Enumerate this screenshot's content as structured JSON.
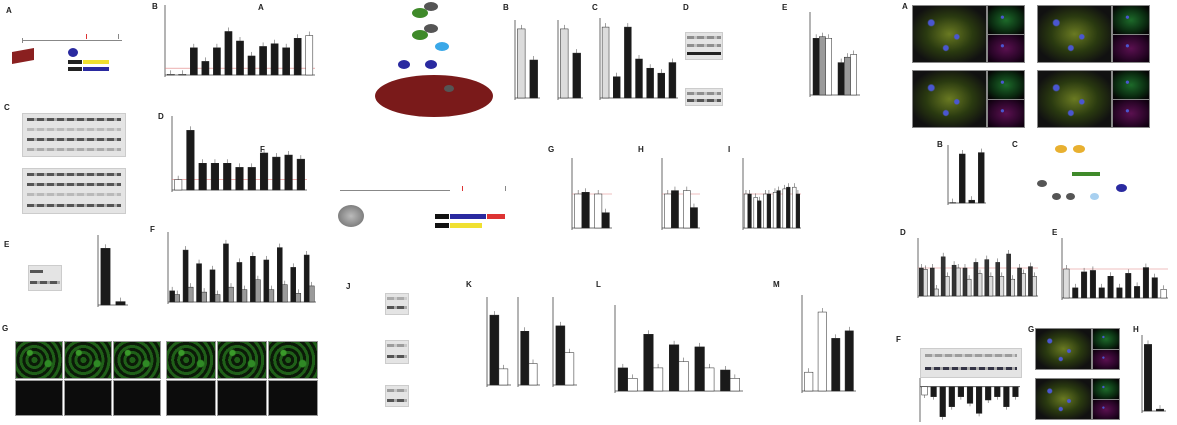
{
  "panel_letters": {
    "left": [
      "A",
      "B",
      "C",
      "D",
      "E",
      "F",
      "G"
    ],
    "middle": [
      "A",
      "B",
      "C",
      "D",
      "E",
      "F",
      "G",
      "H",
      "I",
      "J",
      "K",
      "L",
      "M"
    ],
    "right": [
      "A",
      "B",
      "C",
      "D",
      "E",
      "F",
      "G",
      "H"
    ]
  },
  "colors": {
    "black_bar": "#1a1a1a",
    "gray_bar": "#9a9a9a",
    "white_bar": "#ffffff",
    "reference_line": "#e08080",
    "fluorescence": "#2f8a25",
    "nucleus": "#4a56d0",
    "cell": "#7a1a1a",
    "schematic_green": "#3f8a2a",
    "schematic_blue": "#2a2aa0",
    "schematic_light_blue": "#3aa8e8",
    "schematic_orange": "#e8b030",
    "schematic_gray": "#555555"
  },
  "chart_data": [
    {
      "id": "L-B",
      "type": "bar",
      "ylim": [
        0,
        5
      ],
      "reference": 0.5,
      "series": [
        {
          "color": "mixed",
          "values": [
            0.05,
            0.05,
            2.0,
            1.0,
            2.0,
            3.2,
            2.5,
            1.4,
            2.1,
            2.3,
            2.0,
            2.7,
            2.9
          ],
          "fills": [
            "w",
            "w",
            "k",
            "k",
            "k",
            "k",
            "k",
            "k",
            "k",
            "k",
            "k",
            "k",
            "w"
          ]
        }
      ]
    },
    {
      "id": "L-D",
      "type": "bar",
      "ylim": [
        0,
        3.5
      ],
      "reference": 0.5,
      "series": [
        {
          "values": [
            0.5,
            2.9,
            1.3,
            1.3,
            1.3,
            1.1,
            1.1,
            1.8,
            1.6,
            1.7,
            1.5
          ],
          "fills": [
            "w",
            "k",
            "k",
            "k",
            "k",
            "k",
            "k",
            "k",
            "k",
            "k",
            "k"
          ]
        }
      ]
    },
    {
      "id": "L-E",
      "type": "bar",
      "ylim": [
        0,
        1.2
      ],
      "series": [
        {
          "values": [
            1.0,
            0.06
          ],
          "fills": [
            "k",
            "k"
          ]
        }
      ]
    },
    {
      "id": "L-F",
      "type": "grouped-bar",
      "ylim": [
        0,
        5.5
      ],
      "series": [
        {
          "fill": "k",
          "values": [
            0.9,
            4.2,
            3.1,
            2.6,
            4.7,
            3.2,
            3.7,
            3.4,
            4.4,
            2.8,
            3.8
          ]
        },
        {
          "fill": "g",
          "values": [
            0.6,
            1.2,
            0.8,
            0.6,
            1.2,
            1.0,
            1.8,
            1.0,
            1.4,
            0.7,
            1.3
          ]
        }
      ]
    },
    {
      "id": "M-B1",
      "type": "bar",
      "ylim": [
        0,
        1.1
      ],
      "series": [
        {
          "values": [
            1.0,
            0.55
          ],
          "fills": [
            "l",
            "k"
          ]
        }
      ]
    },
    {
      "id": "M-B2",
      "type": "bar",
      "ylim": [
        0,
        1.1
      ],
      "series": [
        {
          "values": [
            1.0,
            0.65
          ],
          "fills": [
            "l",
            "k"
          ]
        }
      ]
    },
    {
      "id": "M-C",
      "type": "bar",
      "ylim": [
        0,
        1.1
      ],
      "series": [
        {
          "values": [
            1.0,
            0.3,
            1.0,
            0.55,
            0.42,
            0.35,
            0.5
          ],
          "fills": [
            "l",
            "k",
            "k",
            "k",
            "k",
            "k",
            "k"
          ]
        }
      ]
    },
    {
      "id": "M-E",
      "type": "grouped-bar",
      "ylim": [
        0,
        1.5
      ],
      "series": [
        {
          "fill": "k",
          "values": [
            1.05,
            0.6
          ]
        },
        {
          "fill": "g",
          "values": [
            1.08,
            0.7
          ]
        },
        {
          "fill": "w",
          "values": [
            1.05,
            0.75
          ]
        }
      ]
    },
    {
      "id": "M-G",
      "type": "grouped-bar",
      "ylim": [
        0,
        2
      ],
      "reference": 1,
      "series": [
        {
          "fill": "w",
          "values": [
            1.0,
            1.0
          ]
        },
        {
          "fill": "k",
          "values": [
            1.05,
            0.45
          ]
        }
      ]
    },
    {
      "id": "M-H",
      "type": "grouped-bar",
      "ylim": [
        0,
        2
      ],
      "reference": 1,
      "series": [
        {
          "fill": "w",
          "values": [
            1.0,
            1.1
          ]
        },
        {
          "fill": "k",
          "values": [
            1.1,
            0.6
          ]
        }
      ]
    },
    {
      "id": "M-I",
      "type": "grouped-bar",
      "ylim": [
        0,
        2
      ],
      "reference": 1,
      "series": [
        {
          "fill": "w",
          "values": [
            1.0,
            0.9,
            1.0,
            1.05,
            1.15,
            1.2
          ]
        },
        {
          "fill": "k",
          "values": [
            1.0,
            0.8,
            1.0,
            1.1,
            1.2,
            1.0
          ]
        }
      ]
    },
    {
      "id": "M-K1",
      "type": "grouped-bar",
      "ylim": [
        0,
        1.6
      ],
      "series": [
        {
          "fill": "k",
          "values": [
            1.3
          ]
        },
        {
          "fill": "w",
          "values": [
            0.3
          ]
        }
      ]
    },
    {
      "id": "M-K2",
      "type": "grouped-bar",
      "ylim": [
        0,
        1.6
      ],
      "series": [
        {
          "fill": "k",
          "values": [
            1.0
          ]
        },
        {
          "fill": "w",
          "values": [
            0.4
          ]
        }
      ]
    },
    {
      "id": "M-K3",
      "type": "grouped-bar",
      "ylim": [
        0,
        1.6
      ],
      "series": [
        {
          "fill": "k",
          "values": [
            1.1
          ]
        },
        {
          "fill": "w",
          "values": [
            0.6
          ]
        }
      ]
    },
    {
      "id": "M-L",
      "type": "grouped-bar",
      "ylim": [
        0,
        4
      ],
      "series": [
        {
          "fill": "k",
          "values": [
            1.1,
            2.7,
            2.2,
            2.1,
            1.0
          ]
        },
        {
          "fill": "w",
          "values": [
            0.6,
            1.1,
            1.4,
            1.1,
            0.6
          ]
        }
      ]
    },
    {
      "id": "M-M",
      "type": "bar",
      "ylim": [
        0,
        5
      ],
      "series": [
        {
          "values": [
            1.0,
            4.2,
            2.8,
            3.2
          ],
          "fills": [
            "w",
            "w",
            "k",
            "k"
          ]
        }
      ]
    },
    {
      "id": "R-B",
      "type": "bar",
      "ylim": [
        0,
        4
      ],
      "series": [
        {
          "values": [
            0.03,
            3.5,
            0.2,
            3.6
          ],
          "fills": [
            "k",
            "k",
            "k",
            "k"
          ]
        }
      ]
    },
    {
      "id": "R-D",
      "type": "grouped-bar",
      "ylim": [
        0,
        2
      ],
      "reference": 1,
      "series": [
        {
          "fill": "d",
          "values": [
            1.0,
            1.0,
            1.4,
            1.1,
            1.0,
            1.2,
            1.3,
            1.2,
            1.5,
            1.0,
            1.05
          ]
        },
        {
          "fill": "l",
          "values": [
            0.95,
            0.25,
            0.7,
            1.0,
            0.6,
            0.8,
            0.7,
            0.7,
            0.6,
            0.8,
            0.7
          ]
        }
      ]
    },
    {
      "id": "R-E",
      "type": "bar",
      "ylim": [
        0,
        2
      ],
      "reference": 1,
      "series": [
        {
          "values": [
            1.0,
            0.35,
            0.9,
            0.95,
            0.35,
            0.75,
            0.35,
            0.85,
            0.4,
            1.05,
            0.7,
            0.3
          ],
          "fills": [
            "l",
            "k",
            "k",
            "k",
            "k",
            "k",
            "k",
            "k",
            "k",
            "k",
            "k",
            "w"
          ]
        }
      ]
    },
    {
      "id": "R-F",
      "type": "bar",
      "ylim": [
        -1,
        0.2
      ],
      "series": [
        {
          "values": [
            -0.25,
            -0.3,
            -0.9,
            -0.6,
            -0.3,
            -0.5,
            -0.8,
            -0.4,
            -0.3,
            -0.6,
            -0.3
          ],
          "fills": [
            "w",
            "k",
            "k",
            "k",
            "k",
            "k",
            "k",
            "k",
            "k",
            "k",
            "k"
          ]
        }
      ]
    },
    {
      "id": "R-H",
      "type": "bar",
      "ylim": [
        0,
        4
      ],
      "series": [
        {
          "values": [
            3.6,
            0.1
          ],
          "fills": [
            "k",
            "k"
          ]
        }
      ]
    }
  ]
}
